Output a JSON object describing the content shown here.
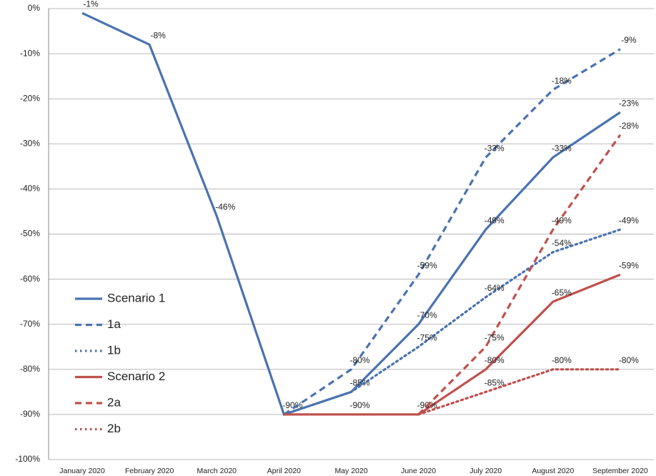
{
  "chart_data": {
    "type": "line",
    "categories": [
      "January 2020",
      "February 2020",
      "March 2020",
      "April 2020",
      "May 2020",
      "June 2020",
      "July 2020",
      "August 2020",
      "September 2020"
    ],
    "ylim": [
      -100,
      0
    ],
    "yticks": [
      {
        "value": 0,
        "label": "0%"
      },
      {
        "value": -10,
        "label": "-10%"
      },
      {
        "value": -20,
        "label": "-20%"
      },
      {
        "value": -30,
        "label": "-30%"
      },
      {
        "value": -40,
        "label": "-40%"
      },
      {
        "value": -50,
        "label": "-50%"
      },
      {
        "value": -60,
        "label": "-60%"
      },
      {
        "value": -70,
        "label": "-70%"
      },
      {
        "value": -80,
        "label": "-80%"
      },
      {
        "value": -90,
        "label": "-90%"
      },
      {
        "value": -100,
        "label": "-100%"
      }
    ],
    "grid": true,
    "legend": "lower-left",
    "series": [
      {
        "name": "Scenario 1",
        "color": "#4a72b0",
        "line_style": "solid",
        "values": [
          -1,
          -8,
          -46,
          -90,
          -85,
          -70,
          -49,
          -33,
          -23
        ],
        "value_labels": [
          "-1%",
          "-8%",
          "-46%",
          "-90%",
          "-85%",
          "-70%",
          "-49%",
          "-33%",
          "-23%"
        ]
      },
      {
        "name": "1a",
        "color": "#4a72b0",
        "line_style": "dashed",
        "values": [
          null,
          null,
          null,
          -90,
          -80,
          -59,
          -33,
          -18,
          -9
        ],
        "value_labels": [
          null,
          null,
          null,
          null,
          "-80%",
          "-59%",
          "-33%",
          "-18%",
          "-9%"
        ]
      },
      {
        "name": "1b",
        "color": "#4a72b0",
        "line_style": "dotted",
        "values": [
          null,
          null,
          null,
          -90,
          -85,
          -75,
          -64,
          -54,
          -49
        ],
        "value_labels": [
          null,
          null,
          null,
          null,
          null,
          "-75%",
          "-64%",
          "-54%",
          "-49%"
        ]
      },
      {
        "name": "Scenario 2",
        "color": "#c0504d",
        "line_style": "solid",
        "values": [
          null,
          null,
          null,
          -90,
          -90,
          -90,
          -80,
          -65,
          -59
        ],
        "value_labels": [
          null,
          null,
          null,
          null,
          "-90%",
          "-90%",
          "-80%",
          "-65%",
          "-59%"
        ]
      },
      {
        "name": "2a",
        "color": "#c0504d",
        "line_style": "dashed",
        "values": [
          null,
          null,
          null,
          null,
          null,
          -90,
          -75,
          -49,
          -28
        ],
        "value_labels": [
          null,
          null,
          null,
          null,
          null,
          null,
          "-75%",
          "-49%",
          "-28%"
        ]
      },
      {
        "name": "2b",
        "color": "#c0504d",
        "line_style": "dotted",
        "values": [
          null,
          null,
          null,
          null,
          null,
          -90,
          -85,
          -80,
          -80
        ],
        "value_labels": [
          null,
          null,
          null,
          null,
          null,
          null,
          "-85%",
          "-80%",
          "-80%"
        ]
      }
    ]
  }
}
